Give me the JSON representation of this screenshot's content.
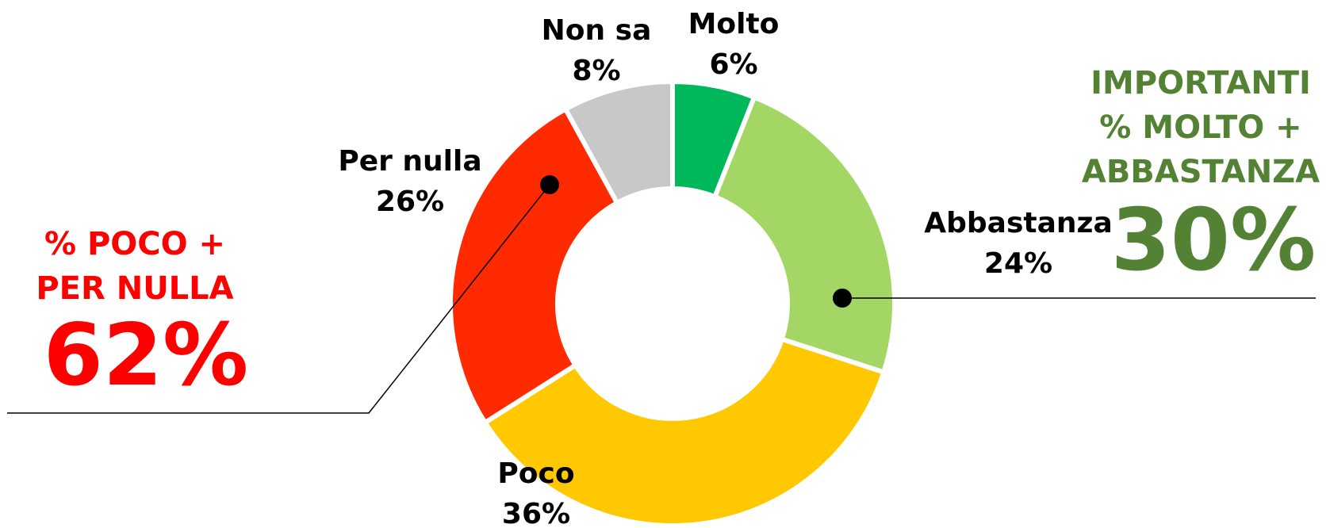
{
  "chart_data": {
    "type": "donut",
    "categories": [
      "Molto",
      "Abbastanza",
      "Poco",
      "Per nulla",
      "Non sa"
    ],
    "values": [
      6,
      24,
      36,
      26,
      8
    ],
    "value_labels": [
      "6%",
      "24%",
      "36%",
      "26%",
      "8%"
    ],
    "colors": [
      "#00b85c",
      "#a3d665",
      "#ffc800",
      "#ff2a00",
      "#c8c8c8"
    ],
    "annotations": [
      {
        "lines": [
          "IMPORTANTI",
          "% MOLTO +",
          "ABBASTANZA"
        ],
        "value": "30%",
        "color": "#548235"
      },
      {
        "lines": [
          "% POCO +",
          "PER NULLA"
        ],
        "value": "62%",
        "color": "#ff0000"
      }
    ]
  }
}
